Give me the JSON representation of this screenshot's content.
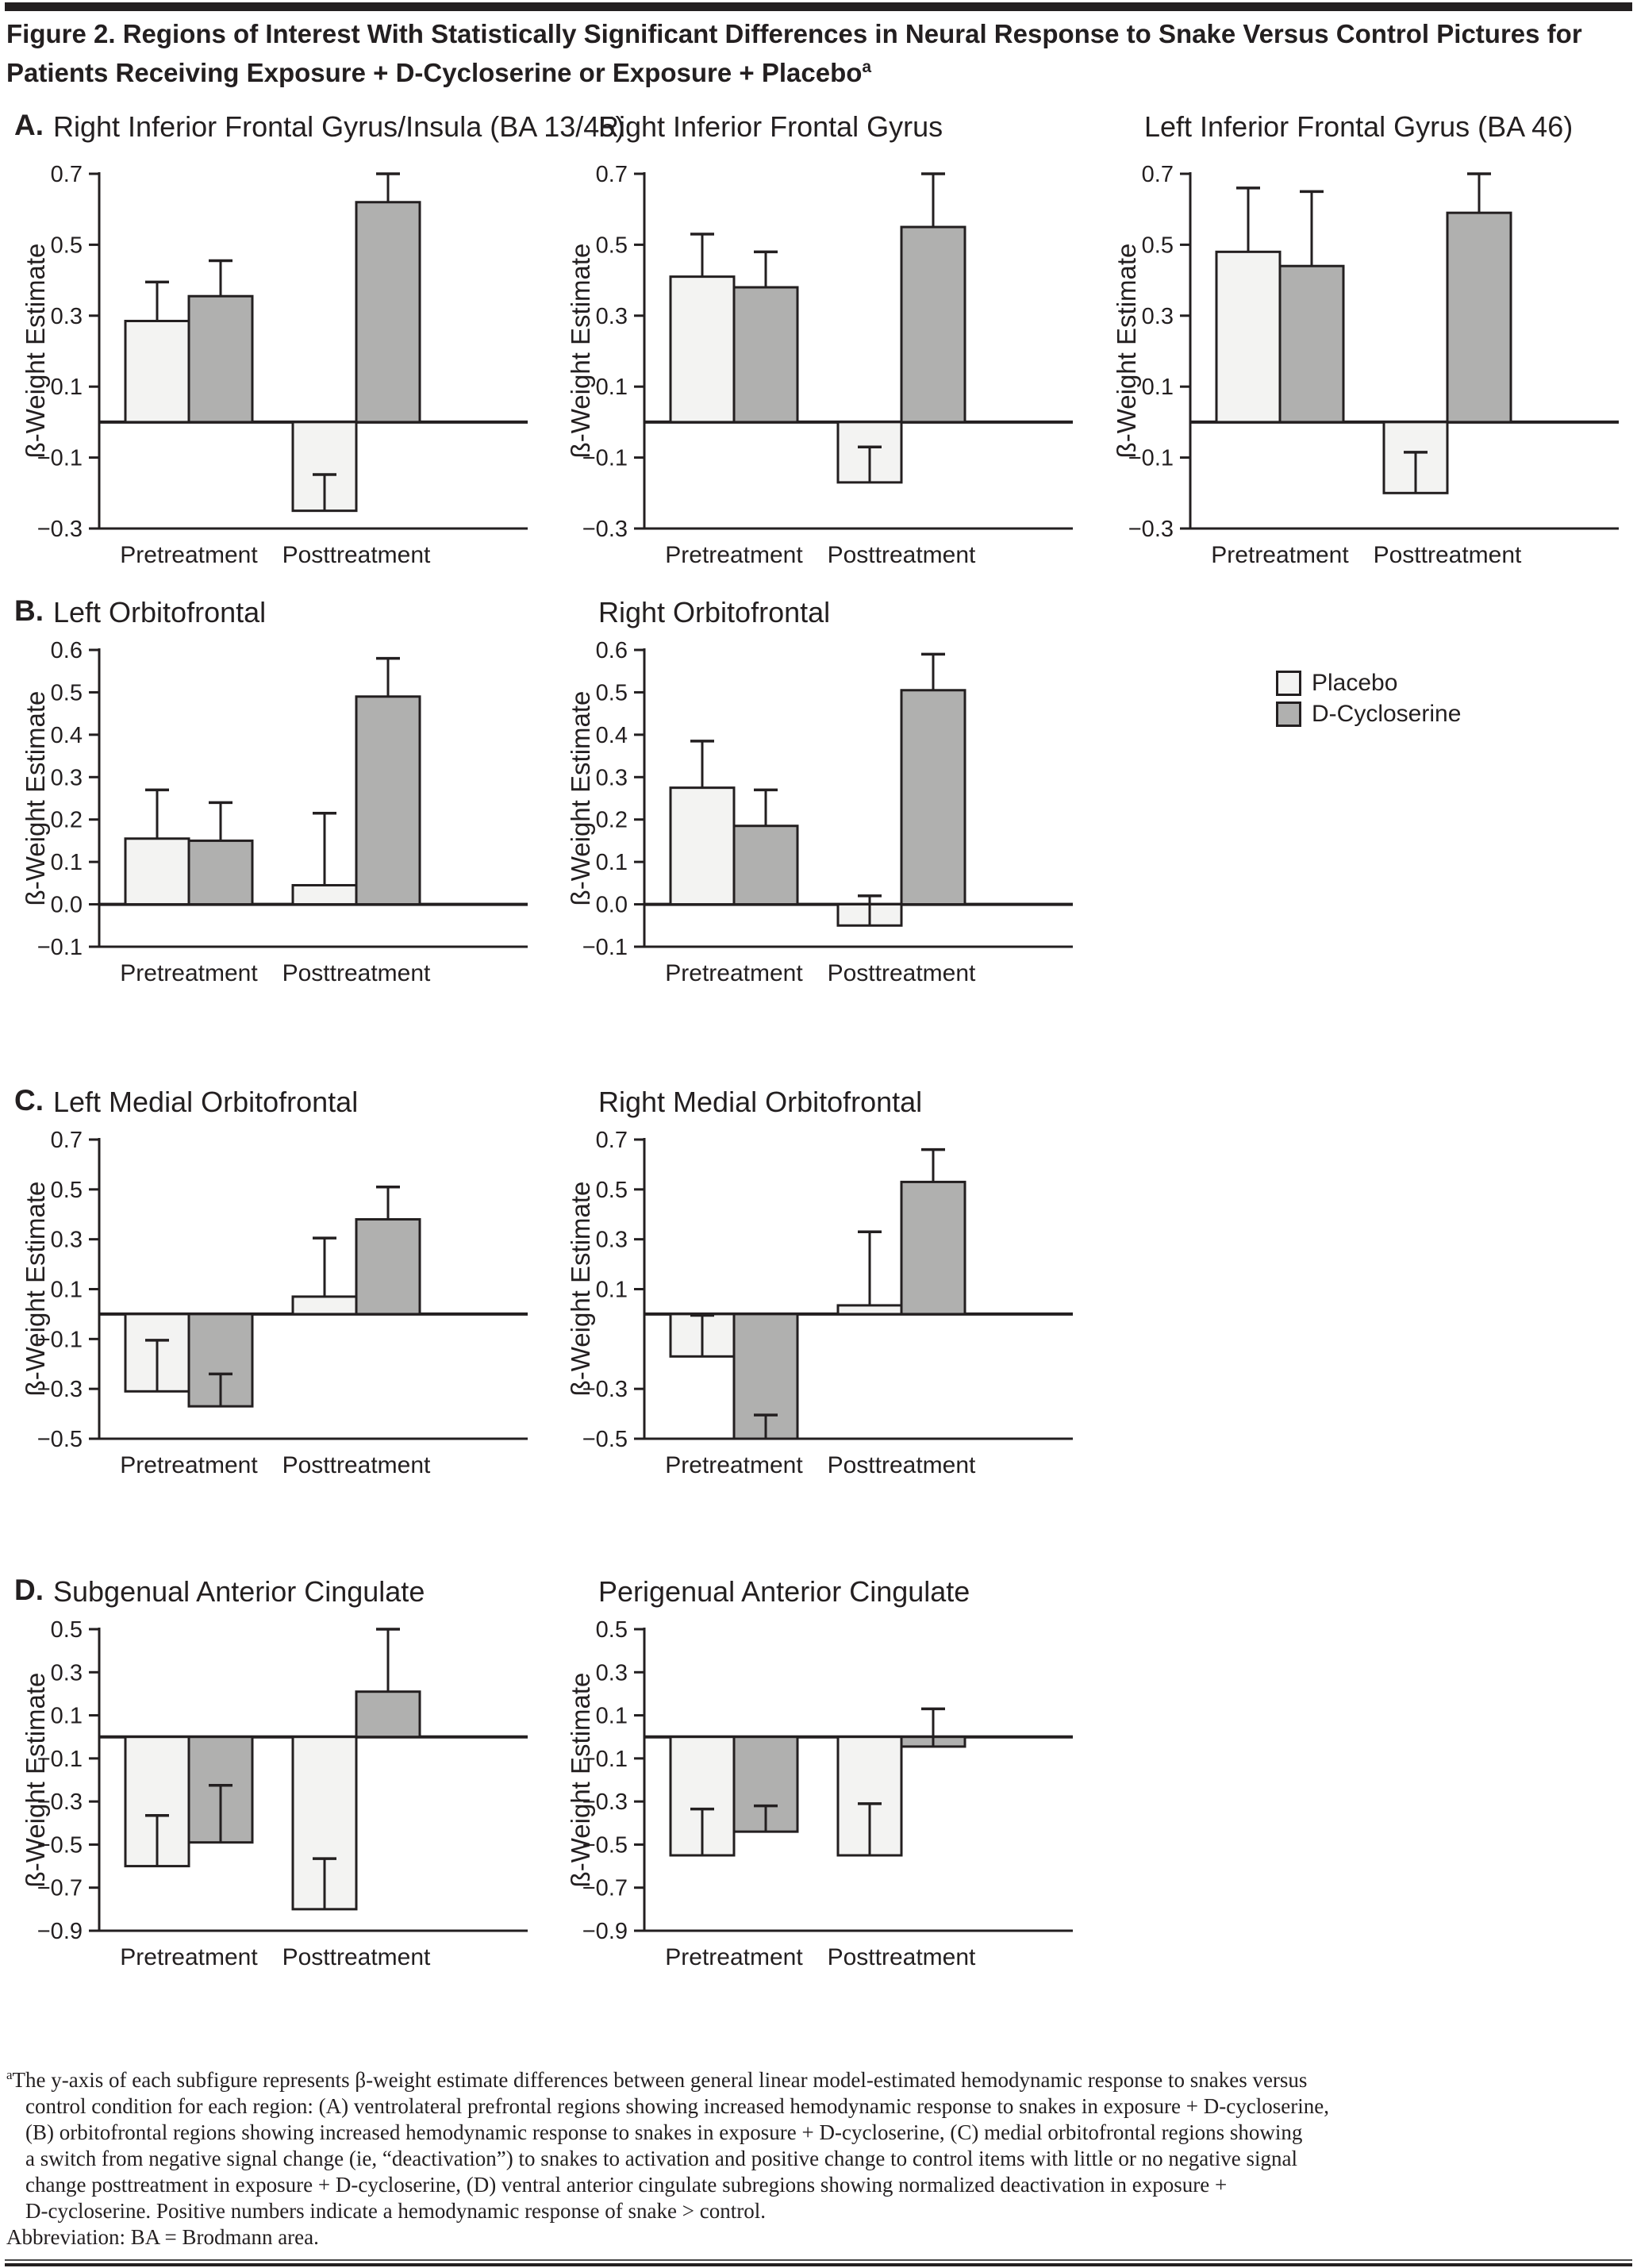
{
  "figure": {
    "title_line1": "Figure 2. Regions of Interest With Statistically Significant Differences in Neural Response to Snake Versus Control Pictures for",
    "title_line2": "Patients Receiving Exposure + D-Cycloserine or Exposure + Placebo",
    "title_sup": "a"
  },
  "colors": {
    "placebo_fill": "#f3f3f2",
    "dcs_fill": "#b0b0af",
    "line": "#231f20",
    "background": "#ffffff"
  },
  "legend": {
    "items": [
      {
        "label": "Placebo",
        "key": "placebo"
      },
      {
        "label": "D-Cycloserine",
        "key": "dcs"
      }
    ]
  },
  "chart_data": [
    {
      "type": "bar",
      "row": "A",
      "col": 0,
      "panel": "A.",
      "title": "Right Inferior Frontal Gyrus/Insula (BA 13/45)",
      "ylabel": "ß-Weight Estimate",
      "ylim": [
        -0.3,
        0.7
      ],
      "ytick_labels": [
        "0.7",
        "0.5",
        "0.3",
        "0.1",
        "−0.1",
        "−0.3"
      ],
      "categories": [
        "Pretreatment",
        "Posttreatment"
      ],
      "series": [
        {
          "name": "Placebo",
          "values": [
            0.285,
            -0.25
          ],
          "error_tops": [
            0.395,
            -0.148
          ]
        },
        {
          "name": "D-Cycloserine",
          "values": [
            0.355,
            0.62
          ],
          "error_tops": [
            0.455,
            0.7
          ]
        }
      ]
    },
    {
      "type": "bar",
      "row": "A",
      "col": 1,
      "panel": "",
      "title": "Right Inferior Frontal Gyrus",
      "ylabel": "ß-Weight Estimate",
      "ylim": [
        -0.3,
        0.7
      ],
      "ytick_labels": [
        "0.7",
        "0.5",
        "0.3",
        "0.1",
        "−0.1",
        "−0.3"
      ],
      "categories": [
        "Pretreatment",
        "Posttreatment"
      ],
      "series": [
        {
          "name": "Placebo",
          "values": [
            0.41,
            -0.17
          ],
          "error_tops": [
            0.53,
            -0.07
          ]
        },
        {
          "name": "D-Cycloserine",
          "values": [
            0.38,
            0.55
          ],
          "error_tops": [
            0.48,
            0.7
          ]
        }
      ]
    },
    {
      "type": "bar",
      "row": "A",
      "col": 2,
      "panel": "",
      "title": "Left Inferior Frontal Gyrus (BA 46)",
      "ylabel": "ß-Weight Estimate",
      "ylim": [
        -0.3,
        0.7
      ],
      "ytick_labels": [
        "0.7",
        "0.5",
        "0.3",
        "0.1",
        "−0.1",
        "−0.3"
      ],
      "categories": [
        "Pretreatment",
        "Posttreatment"
      ],
      "series": [
        {
          "name": "Placebo",
          "values": [
            0.48,
            -0.2
          ],
          "error_tops": [
            0.66,
            -0.085
          ]
        },
        {
          "name": "D-Cycloserine",
          "values": [
            0.44,
            0.59
          ],
          "error_tops": [
            0.65,
            0.7
          ]
        }
      ]
    },
    {
      "type": "bar",
      "row": "B",
      "col": 0,
      "panel": "B.",
      "title": "Left Orbitofrontal",
      "ylabel": "ß-Weight Estimate",
      "ylim": [
        -0.1,
        0.6
      ],
      "ytick_labels": [
        "0.6",
        "0.5",
        "0.4",
        "0.3",
        "0.2",
        "0.1",
        "0.0",
        "−0.1"
      ],
      "categories": [
        "Pretreatment",
        "Posttreatment"
      ],
      "series": [
        {
          "name": "Placebo",
          "values": [
            0.155,
            0.045
          ],
          "error_tops": [
            0.27,
            0.215
          ]
        },
        {
          "name": "D-Cycloserine",
          "values": [
            0.15,
            0.49
          ],
          "error_tops": [
            0.24,
            0.58
          ]
        }
      ]
    },
    {
      "type": "bar",
      "row": "B",
      "col": 1,
      "panel": "",
      "title": "Right Orbitofrontal",
      "ylabel": "ß-Weight Estimate",
      "ylim": [
        -0.1,
        0.6
      ],
      "ytick_labels": [
        "0.6",
        "0.5",
        "0.4",
        "0.3",
        "0.2",
        "0.1",
        "0.0",
        "−0.1"
      ],
      "categories": [
        "Pretreatment",
        "Posttreatment"
      ],
      "series": [
        {
          "name": "Placebo",
          "values": [
            0.275,
            -0.05
          ],
          "error_tops": [
            0.385,
            0.02
          ]
        },
        {
          "name": "D-Cycloserine",
          "values": [
            0.185,
            0.505
          ],
          "error_tops": [
            0.27,
            0.59
          ]
        }
      ]
    },
    {
      "type": "bar",
      "row": "C",
      "col": 0,
      "panel": "C.",
      "title": "Left Medial Orbitofrontal",
      "ylabel": "ß-Weight Estimate",
      "ylim": [
        -0.5,
        0.7
      ],
      "ytick_labels": [
        "0.7",
        "0.5",
        "0.3",
        "0.1",
        "−0.1",
        "−0.3",
        "−0.5"
      ],
      "categories": [
        "Pretreatment",
        "Posttreatment"
      ],
      "series": [
        {
          "name": "Placebo",
          "values": [
            -0.31,
            0.07
          ],
          "error_tops": [
            -0.105,
            0.305
          ]
        },
        {
          "name": "D-Cycloserine",
          "values": [
            -0.37,
            0.38
          ],
          "error_tops": [
            -0.24,
            0.51
          ]
        }
      ]
    },
    {
      "type": "bar",
      "row": "C",
      "col": 1,
      "panel": "",
      "title": "Right Medial Orbitofrontal",
      "ylabel": "ß-Weight Estimate",
      "ylim": [
        -0.5,
        0.7
      ],
      "ytick_labels": [
        "0.7",
        "0.5",
        "0.3",
        "0.1",
        "−0.3",
        "−0.5"
      ],
      "categories": [
        "Pretreatment",
        "Posttreatment"
      ],
      "series": [
        {
          "name": "Placebo",
          "values": [
            -0.17,
            0.035
          ],
          "error_tops": [
            -0.005,
            0.33
          ]
        },
        {
          "name": "D-Cycloserine",
          "values": [
            -0.5,
            0.53
          ],
          "error_tops": [
            -0.405,
            0.66
          ]
        }
      ]
    },
    {
      "type": "bar",
      "row": "D",
      "col": 0,
      "panel": "D.",
      "title": "Subgenual Anterior Cingulate",
      "ylabel": "ß-Weight Estimate",
      "ylim": [
        -0.9,
        0.5
      ],
      "ytick_labels": [
        "0.5",
        "0.3",
        "0.1",
        "−0.1",
        "−0.3",
        "−0.5",
        "−0.7",
        "−0.9"
      ],
      "categories": [
        "Pretreatment",
        "Posttreatment"
      ],
      "series": [
        {
          "name": "Placebo",
          "values": [
            -0.6,
            -0.8
          ],
          "error_tops": [
            -0.365,
            -0.565
          ]
        },
        {
          "name": "D-Cycloserine",
          "values": [
            -0.49,
            0.21
          ],
          "error_tops": [
            -0.225,
            0.5
          ]
        }
      ]
    },
    {
      "type": "bar",
      "row": "D",
      "col": 1,
      "panel": "",
      "title": "Perigenual Anterior Cingulate",
      "ylabel": "ß-Weight Estimate",
      "ylim": [
        -0.9,
        0.5
      ],
      "ytick_labels": [
        "0.5",
        "0.3",
        "0.1",
        "−0.1",
        "−0.3",
        "−0.5",
        "−0.7",
        "−0.9"
      ],
      "categories": [
        "Pretreatment",
        "Posttreatment"
      ],
      "series": [
        {
          "name": "Placebo",
          "values": [
            -0.55,
            -0.55
          ],
          "error_tops": [
            -0.335,
            -0.31
          ]
        },
        {
          "name": "D-Cycloserine",
          "values": [
            -0.44,
            -0.045
          ],
          "error_tops": [
            -0.32,
            0.13
          ]
        }
      ]
    }
  ],
  "footnote": {
    "sup": "a",
    "lines": [
      "The y-axis of each subfigure represents β-weight estimate differences between general linear model-estimated hemodynamic response to snakes versus",
      "control condition for each region: (A) ventrolateral prefrontal regions showing increased hemodynamic response to snakes in exposure + D-cycloserine,",
      "(B) orbitofrontal regions showing increased hemodynamic response to snakes in exposure + D-cycloserine, (C) medial orbitofrontal regions showing",
      "a switch from negative signal change (ie, “deactivation”) to snakes to activation and positive change to control items with little or no negative signal",
      "change posttreatment in exposure + D-cycloserine, (D) ventral anterior cingulate subregions showing normalized deactivation in exposure +",
      "D-cycloserine. Positive numbers indicate a hemodynamic response of snake > control."
    ],
    "abbreviation": "Abbreviation: BA = Brodmann area."
  }
}
